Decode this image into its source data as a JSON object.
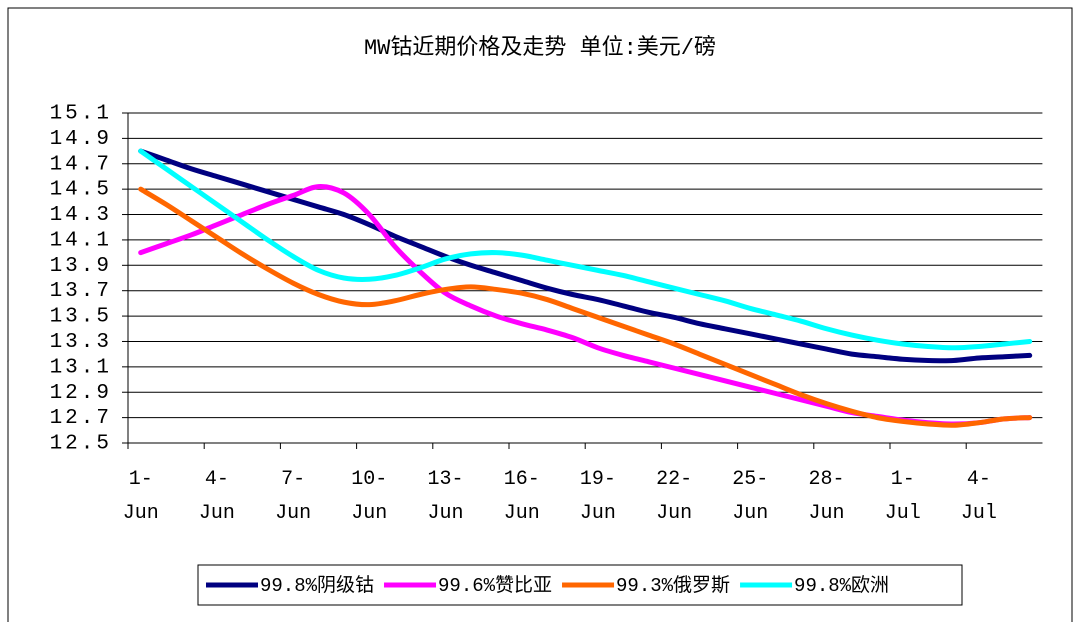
{
  "chart_data": {
    "type": "line",
    "title": "MW钴近期价格及走势 单位:美元/磅",
    "categories": [
      "1-Jun",
      null,
      null,
      "4-Jun",
      null,
      null,
      "7-Jun",
      null,
      null,
      "10-Jun",
      null,
      null,
      "13-Jun",
      null,
      null,
      "16-Jun",
      null,
      null,
      "19-Jun",
      null,
      null,
      "22-Jun",
      null,
      null,
      "25-Jun",
      null,
      null,
      "28-Jun",
      null,
      null,
      "1-Jul",
      null,
      null,
      "4-Jul",
      null,
      null
    ],
    "series": [
      {
        "name": "99.8%阴级钴",
        "color": "#000080",
        "values": [
          14.8,
          14.73,
          14.66,
          14.6,
          14.54,
          14.48,
          14.42,
          14.36,
          14.3,
          14.22,
          14.13,
          14.05,
          13.97,
          13.9,
          13.84,
          13.78,
          13.72,
          13.67,
          13.63,
          13.58,
          13.53,
          13.49,
          13.44,
          13.4,
          13.36,
          13.32,
          13.28,
          13.24,
          13.2,
          13.18,
          13.16,
          13.15,
          13.15,
          13.17,
          13.18,
          13.19
        ]
      },
      {
        "name": "99.6%赞比亚",
        "color": "#ff00ff",
        "values": [
          14.0,
          14.07,
          14.14,
          14.22,
          14.3,
          14.38,
          14.45,
          14.52,
          14.47,
          14.3,
          14.05,
          13.85,
          13.68,
          13.58,
          13.5,
          13.44,
          13.39,
          13.33,
          13.25,
          13.19,
          13.14,
          13.09,
          13.04,
          12.99,
          12.94,
          12.89,
          12.84,
          12.79,
          12.74,
          12.71,
          12.68,
          12.66,
          12.65,
          12.66,
          12.69,
          12.7
        ]
      },
      {
        "name": "99.3%俄罗斯",
        "color": "#ff6600",
        "values": [
          14.5,
          14.38,
          14.25,
          14.12,
          13.99,
          13.87,
          13.76,
          13.67,
          13.61,
          13.59,
          13.62,
          13.67,
          13.71,
          13.73,
          13.71,
          13.68,
          13.63,
          13.56,
          13.49,
          13.42,
          13.35,
          13.28,
          13.2,
          13.12,
          13.04,
          12.96,
          12.88,
          12.81,
          12.75,
          12.7,
          12.67,
          12.65,
          12.64,
          12.66,
          12.69,
          12.7
        ]
      },
      {
        "name": "99.8%欧洲",
        "color": "#00ffff",
        "values": [
          14.8,
          14.66,
          14.52,
          14.38,
          14.24,
          14.1,
          13.97,
          13.86,
          13.8,
          13.79,
          13.82,
          13.88,
          13.95,
          13.99,
          14.0,
          13.98,
          13.94,
          13.9,
          13.86,
          13.82,
          13.77,
          13.72,
          13.67,
          13.62,
          13.56,
          13.51,
          13.46,
          13.4,
          13.35,
          13.31,
          13.28,
          13.26,
          13.25,
          13.26,
          13.28,
          13.3
        ]
      }
    ],
    "ylim": [
      12.5,
      15.1
    ],
    "yticks": [
      12.5,
      12.7,
      12.9,
      13.1,
      13.3,
      13.5,
      13.7,
      13.9,
      14.1,
      14.3,
      14.5,
      14.7,
      14.9,
      15.1
    ],
    "grid": true,
    "legend": "bottom"
  }
}
